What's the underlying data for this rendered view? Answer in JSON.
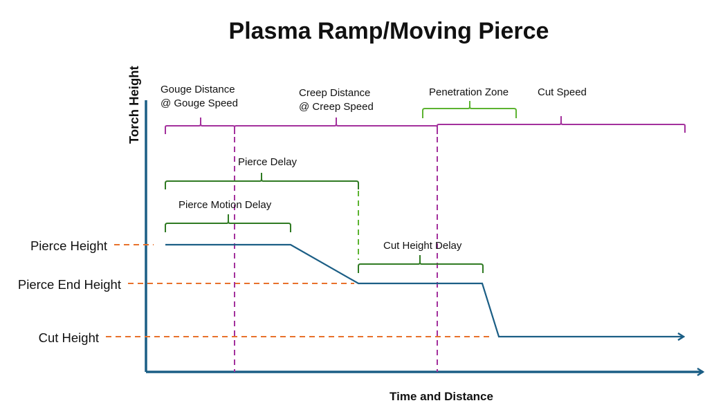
{
  "title": "Plasma Ramp/Moving Pierce",
  "axes": {
    "y_label": "Torch Height",
    "x_label": "Time and Distance"
  },
  "height_levels": [
    "Pierce Height",
    "Pierce End Height",
    "Cut Height"
  ],
  "spans": {
    "gouge": [
      "Gouge Distance",
      "@ Gouge Speed"
    ],
    "creep": [
      "Creep Distance",
      "@ Creep Speed"
    ],
    "penetration_zone": "Penetration Zone",
    "cut_speed": "Cut Speed",
    "pierce_delay": "Pierce Delay",
    "pierce_motion_delay": "Pierce Motion Delay",
    "cut_height_delay": "Cut Height Delay"
  },
  "colors": {
    "profile": "#1b5e85",
    "distance_brace": "#a3309c",
    "delay_brace": "#2f7a22",
    "penetration_brace": "#5cb330",
    "height_reference": "#e8712b"
  }
}
